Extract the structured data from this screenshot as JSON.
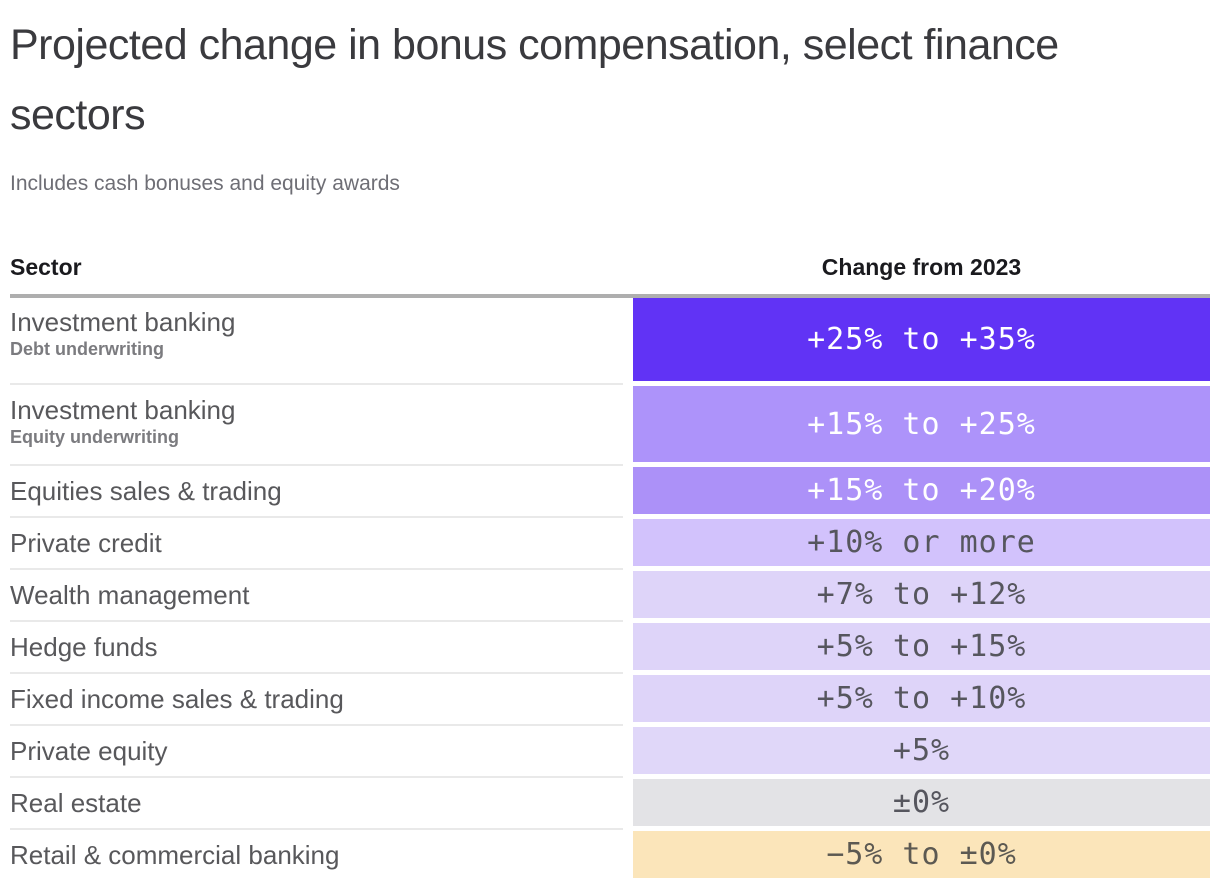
{
  "header": {
    "title": "Projected change in bonus compensation, select finance sectors",
    "subtitle": "Includes cash bonuses and equity awards"
  },
  "table": {
    "columns": {
      "sector": "Sector",
      "change": "Change from 2023"
    },
    "rows": [
      {
        "sector": "Investment banking",
        "subsector": "Debt underwriting",
        "value": "+25% to +35%",
        "bg": "#6133f5",
        "fg": "#ffffff"
      },
      {
        "sector": "Investment banking",
        "subsector": "Equity underwriting",
        "value": "+15% to +25%",
        "bg": "#ad93fa",
        "fg": "#ffffff"
      },
      {
        "sector": "Equities sales & trading",
        "value": "+15% to +20%",
        "bg": "#ac91f8",
        "fg": "#ffffff"
      },
      {
        "sector": "Private credit",
        "value": "+10% or more",
        "bg": "#d2c2fc",
        "fg": "#56565e"
      },
      {
        "sector": "Wealth management",
        "value": "+7% to +12%",
        "bg": "#ded4f9",
        "fg": "#56565e"
      },
      {
        "sector": "Hedge funds",
        "value": "+5% to +15%",
        "bg": "#ded4f9",
        "fg": "#56565e"
      },
      {
        "sector": "Fixed income sales & trading",
        "value": "+5% to +10%",
        "bg": "#ded4f9",
        "fg": "#56565e"
      },
      {
        "sector": "Private equity",
        "value": "+5%",
        "bg": "#e0d7f9",
        "fg": "#56565e"
      },
      {
        "sector": "Real estate",
        "value": "±0%",
        "bg": "#e3e3e6",
        "fg": "#56565e"
      },
      {
        "sector": "Retail & commercial banking",
        "value": "−5% to ±0%",
        "bg": "#fbe5ba",
        "fg": "#5c5952"
      }
    ],
    "colors": {
      "header_rule": "#aeaeae",
      "row_separator": "#e9e9e9",
      "increase_strong": "#6133f5",
      "increase_light": "#ded4f9",
      "flat": "#e3e3e6",
      "decrease": "#fbe5ba"
    }
  },
  "chart_data": {
    "type": "table",
    "title": "Projected change in bonus compensation, select finance sectors",
    "subtitle": "Includes cash bonuses and equity awards",
    "columns": [
      "Sector",
      "Change from 2023"
    ],
    "rows": [
      {
        "sector": "Investment banking",
        "detail": "Debt underwriting",
        "change": "+25% to +35%",
        "range_pct": [
          25,
          35
        ]
      },
      {
        "sector": "Investment banking",
        "detail": "Equity underwriting",
        "change": "+15% to +25%",
        "range_pct": [
          15,
          25
        ]
      },
      {
        "sector": "Equities sales & trading",
        "change": "+15% to +20%",
        "range_pct": [
          15,
          20
        ]
      },
      {
        "sector": "Private credit",
        "change": "+10% or more",
        "range_pct": [
          10,
          null
        ]
      },
      {
        "sector": "Wealth management",
        "change": "+7% to +12%",
        "range_pct": [
          7,
          12
        ]
      },
      {
        "sector": "Hedge funds",
        "change": "+5% to +15%",
        "range_pct": [
          5,
          15
        ]
      },
      {
        "sector": "Fixed income sales & trading",
        "change": "+5% to +10%",
        "range_pct": [
          5,
          10
        ]
      },
      {
        "sector": "Private equity",
        "change": "+5%",
        "range_pct": [
          5,
          5
        ]
      },
      {
        "sector": "Real estate",
        "change": "±0%",
        "range_pct": [
          0,
          0
        ]
      },
      {
        "sector": "Retail & commercial banking",
        "change": "−5% to ±0%",
        "range_pct": [
          -5,
          0
        ]
      }
    ],
    "encoding_note": "Cell shading encodes magnitude: dark purple = largest increase, light purple = smaller increase, gray = flat, orange = decrease"
  }
}
